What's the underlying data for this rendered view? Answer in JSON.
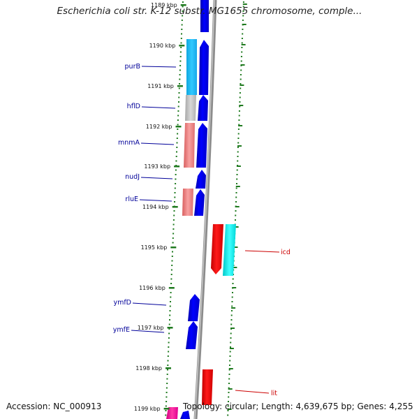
{
  "title": "Escherichia coli str. K-12 substr. MG1655 chromosome, comple...",
  "footer": {
    "accession": "Accession: NC_000913",
    "topology": "Topology: circular; Length: 4,639,675 bp; Genes: 4,255"
  },
  "colors": {
    "backbone": "#8c8c8c",
    "tick_mark": "#1f7a1f",
    "forward_cds": "#0000e6",
    "reverse_cds": "#e60000",
    "label_forward": "#000099",
    "label_reverse": "#cc0000"
  },
  "scale_labels": [
    "1189 kbp",
    "1190 kbp",
    "1191 kbp",
    "1192 kbp",
    "1193 kbp",
    "1194 kbp",
    "1195 kbp",
    "1196 kbp",
    "1197 kbp",
    "1198 kbp",
    "1199 kbp"
  ],
  "gene_labels": [
    {
      "name": "purB",
      "strand": "forward"
    },
    {
      "name": "hflD",
      "strand": "forward"
    },
    {
      "name": "mnmA",
      "strand": "forward"
    },
    {
      "name": "nudJ",
      "strand": "forward"
    },
    {
      "name": "rluE",
      "strand": "forward"
    },
    {
      "name": "ymfD",
      "strand": "forward"
    },
    {
      "name": "ymfE",
      "strand": "forward"
    },
    {
      "name": "icd",
      "strand": "reverse"
    },
    {
      "name": "lit",
      "strand": "reverse"
    }
  ]
}
